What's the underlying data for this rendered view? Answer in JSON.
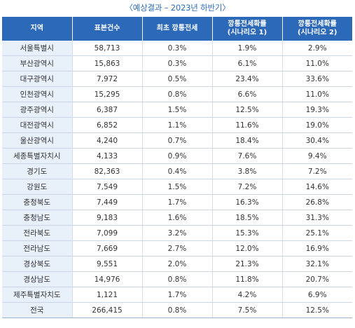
{
  "caption": "〈예상결과 – 2023년 하반기〉",
  "headers": [
    "지역",
    "표본건수",
    "최초 깡통전세",
    "깡통전세확률\n(시나리오 1)",
    "깡통전세확률\n(시나리오 2)"
  ],
  "rows": [
    [
      "서울특별시",
      "58,713",
      "0.3%",
      "1.9%",
      "2.9%"
    ],
    [
      "부산광역시",
      "15,863",
      "0.3%",
      "6.1%",
      "11.0%"
    ],
    [
      "대구광역시",
      "7,972",
      "0.5%",
      "23.4%",
      "33.6%"
    ],
    [
      "인천광역시",
      "15,295",
      "0.8%",
      "6.6%",
      "11.0%"
    ],
    [
      "광주광역시",
      "6,387",
      "1.5%",
      "12.5%",
      "19.3%"
    ],
    [
      "대전광역시",
      "6,852",
      "1.1%",
      "11.6%",
      "19.0%"
    ],
    [
      "울산광역시",
      "4,240",
      "0.7%",
      "18.4%",
      "30.4%"
    ],
    [
      "세종특별자치시",
      "4,133",
      "0.9%",
      "7.6%",
      "9.4%"
    ],
    [
      "경기도",
      "82,363",
      "0.4%",
      "3.8%",
      "7.2%"
    ],
    [
      "강원도",
      "7,549",
      "1.5%",
      "7.2%",
      "14.6%"
    ],
    [
      "충청북도",
      "7,449",
      "1.7%",
      "16.3%",
      "26.8%"
    ],
    [
      "충청남도",
      "9,183",
      "1.6%",
      "18.5%",
      "31.3%"
    ],
    [
      "전라북도",
      "7,099",
      "3.2%",
      "15.3%",
      "25.1%"
    ],
    [
      "전라남도",
      "7,669",
      "2.7%",
      "12.0%",
      "16.9%"
    ],
    [
      "경상북도",
      "9,551",
      "2.0%",
      "21.3%",
      "32.1%"
    ],
    [
      "경상남도",
      "14,976",
      "0.8%",
      "11.8%",
      "20.7%"
    ],
    [
      "제주특별자치도",
      "1,121",
      "1.7%",
      "4.2%",
      "6.9%"
    ],
    [
      "전국",
      "266,415",
      "0.8%",
      "7.5%",
      "12.5%"
    ]
  ]
}
